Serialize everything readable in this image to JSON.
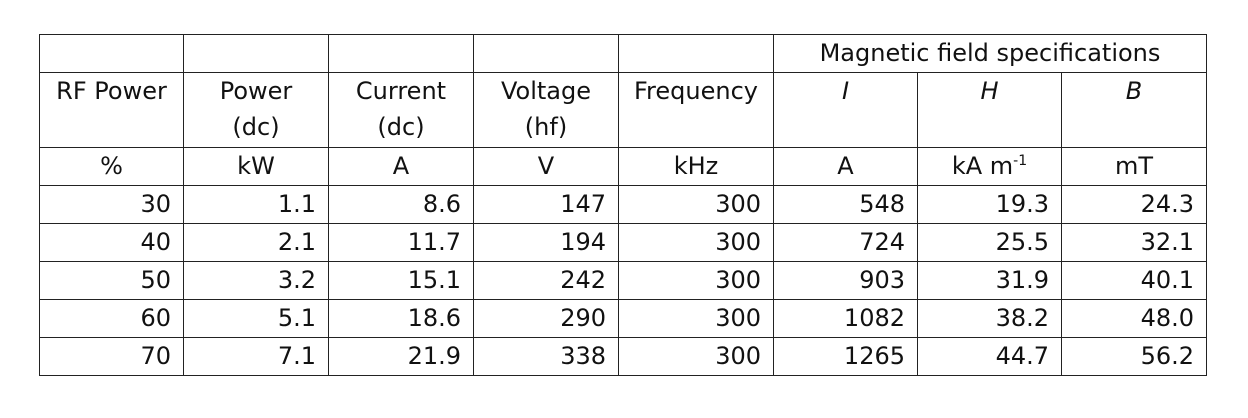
{
  "table": {
    "group_header": "Magnetic field specifications",
    "columns": [
      {
        "line1": "RF Power",
        "line2": ""
      },
      {
        "line1": "Power",
        "line2": "(dc)"
      },
      {
        "line1": "Current",
        "line2": "(dc)"
      },
      {
        "line1": "Voltage",
        "line2": "(hf)"
      },
      {
        "line1": "Frequency",
        "line2": ""
      },
      {
        "line1": "I",
        "line2": ""
      },
      {
        "line1": "H",
        "line2": ""
      },
      {
        "line1": "B",
        "line2": ""
      }
    ],
    "units": [
      "%",
      "kW",
      "A",
      "V",
      "kHz",
      "A",
      "kA m",
      "mT"
    ],
    "units_sup_h": "-1",
    "rows": [
      [
        "30",
        "1.1",
        "8.6",
        "147",
        "300",
        "548",
        "19.3",
        "24.3"
      ],
      [
        "40",
        "2.1",
        "11.7",
        "194",
        "300",
        "724",
        "25.5",
        "32.1"
      ],
      [
        "50",
        "3.2",
        "15.1",
        "242",
        "300",
        "903",
        "31.9",
        "40.1"
      ],
      [
        "60",
        "5.1",
        "18.6",
        "290",
        "300",
        "1082",
        "38.2",
        "48.0"
      ],
      [
        "70",
        "7.1",
        "21.9",
        "338",
        "300",
        "1265",
        "44.7",
        "56.2"
      ]
    ]
  }
}
